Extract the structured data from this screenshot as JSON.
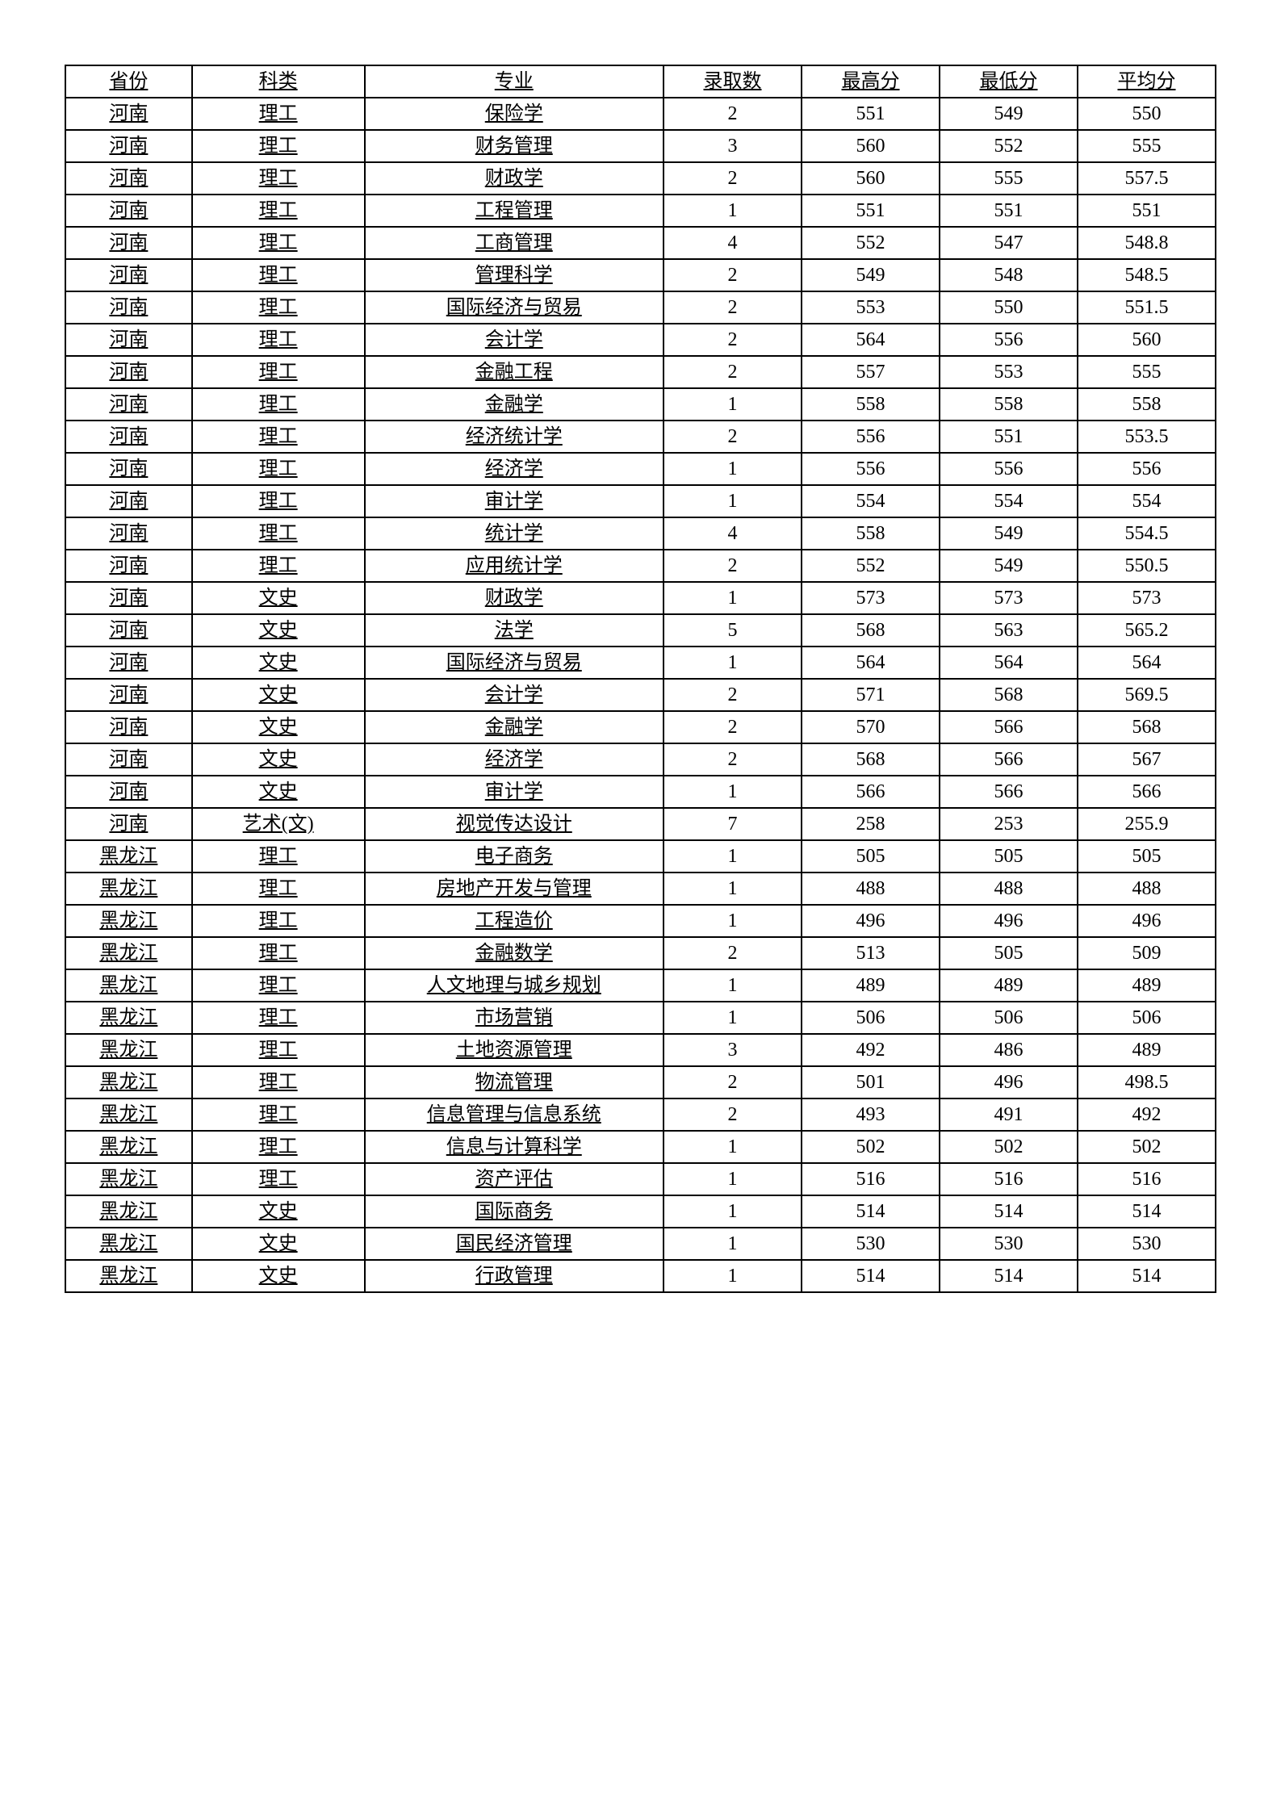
{
  "table": {
    "headers": [
      "省份",
      "科类",
      "专业",
      "录取数",
      "最高分",
      "最低分",
      "平均分"
    ],
    "underline_cols": [
      0,
      1,
      2
    ],
    "rows": [
      [
        "河南",
        "理工",
        "保险学",
        "2",
        "551",
        "549",
        "550"
      ],
      [
        "河南",
        "理工",
        "财务管理",
        "3",
        "560",
        "552",
        "555"
      ],
      [
        "河南",
        "理工",
        "财政学",
        "2",
        "560",
        "555",
        "557.5"
      ],
      [
        "河南",
        "理工",
        "工程管理",
        "1",
        "551",
        "551",
        "551"
      ],
      [
        "河南",
        "理工",
        "工商管理",
        "4",
        "552",
        "547",
        "548.8"
      ],
      [
        "河南",
        "理工",
        "管理科学",
        "2",
        "549",
        "548",
        "548.5"
      ],
      [
        "河南",
        "理工",
        "国际经济与贸易",
        "2",
        "553",
        "550",
        "551.5"
      ],
      [
        "河南",
        "理工",
        "会计学",
        "2",
        "564",
        "556",
        "560"
      ],
      [
        "河南",
        "理工",
        "金融工程",
        "2",
        "557",
        "553",
        "555"
      ],
      [
        "河南",
        "理工",
        "金融学",
        "1",
        "558",
        "558",
        "558"
      ],
      [
        "河南",
        "理工",
        "经济统计学",
        "2",
        "556",
        "551",
        "553.5"
      ],
      [
        "河南",
        "理工",
        "经济学",
        "1",
        "556",
        "556",
        "556"
      ],
      [
        "河南",
        "理工",
        "审计学",
        "1",
        "554",
        "554",
        "554"
      ],
      [
        "河南",
        "理工",
        "统计学",
        "4",
        "558",
        "549",
        "554.5"
      ],
      [
        "河南",
        "理工",
        "应用统计学",
        "2",
        "552",
        "549",
        "550.5"
      ],
      [
        "河南",
        "文史",
        "财政学",
        "1",
        "573",
        "573",
        "573"
      ],
      [
        "河南",
        "文史",
        "法学",
        "5",
        "568",
        "563",
        "565.2"
      ],
      [
        "河南",
        "文史",
        "国际经济与贸易",
        "1",
        "564",
        "564",
        "564"
      ],
      [
        "河南",
        "文史",
        "会计学",
        "2",
        "571",
        "568",
        "569.5"
      ],
      [
        "河南",
        "文史",
        "金融学",
        "2",
        "570",
        "566",
        "568"
      ],
      [
        "河南",
        "文史",
        "经济学",
        "2",
        "568",
        "566",
        "567"
      ],
      [
        "河南",
        "文史",
        "审计学",
        "1",
        "566",
        "566",
        "566"
      ],
      [
        "河南",
        "艺术(文)",
        "视觉传达设计",
        "7",
        "258",
        "253",
        "255.9"
      ],
      [
        "黑龙江",
        "理工",
        "电子商务",
        "1",
        "505",
        "505",
        "505"
      ],
      [
        "黑龙江",
        "理工",
        "房地产开发与管理",
        "1",
        "488",
        "488",
        "488"
      ],
      [
        "黑龙江",
        "理工",
        "工程造价",
        "1",
        "496",
        "496",
        "496"
      ],
      [
        "黑龙江",
        "理工",
        "金融数学",
        "2",
        "513",
        "505",
        "509"
      ],
      [
        "黑龙江",
        "理工",
        "人文地理与城乡规划",
        "1",
        "489",
        "489",
        "489"
      ],
      [
        "黑龙江",
        "理工",
        "市场营销",
        "1",
        "506",
        "506",
        "506"
      ],
      [
        "黑龙江",
        "理工",
        "土地资源管理",
        "3",
        "492",
        "486",
        "489"
      ],
      [
        "黑龙江",
        "理工",
        "物流管理",
        "2",
        "501",
        "496",
        "498.5"
      ],
      [
        "黑龙江",
        "理工",
        "信息管理与信息系统",
        "2",
        "493",
        "491",
        "492"
      ],
      [
        "黑龙江",
        "理工",
        "信息与计算科学",
        "1",
        "502",
        "502",
        "502"
      ],
      [
        "黑龙江",
        "理工",
        "资产评估",
        "1",
        "516",
        "516",
        "516"
      ],
      [
        "黑龙江",
        "文史",
        "国际商务",
        "1",
        "514",
        "514",
        "514"
      ],
      [
        "黑龙江",
        "文史",
        "国民经济管理",
        "1",
        "530",
        "530",
        "530"
      ],
      [
        "黑龙江",
        "文史",
        "行政管理",
        "1",
        "514",
        "514",
        "514"
      ]
    ]
  }
}
